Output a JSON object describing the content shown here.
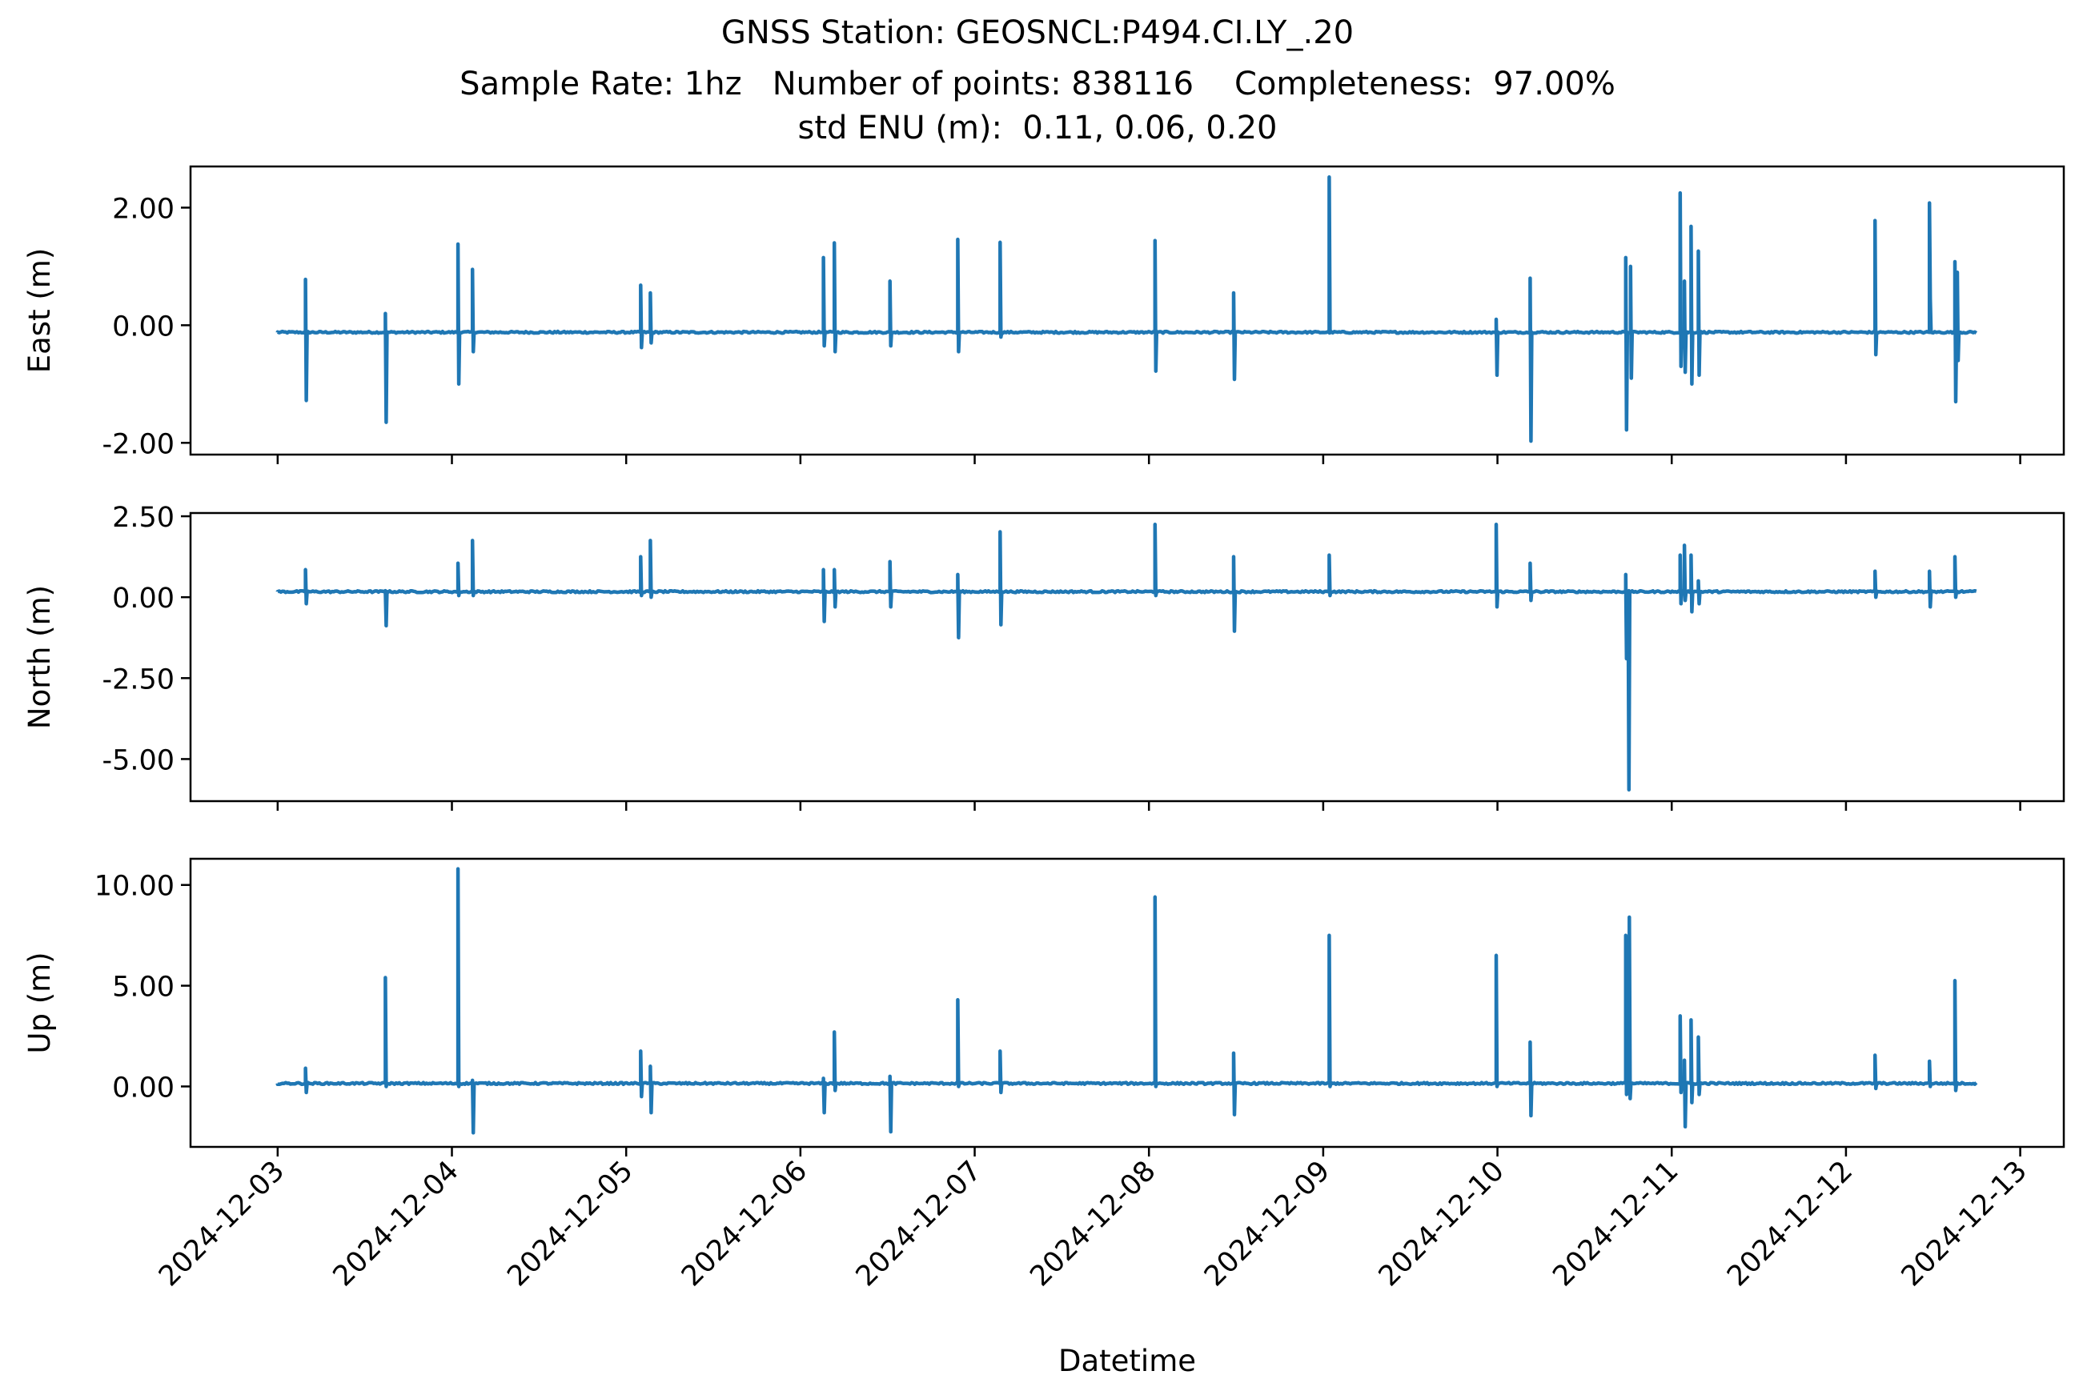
{
  "chart_title": {
    "line1": "GNSS Station: GEOSNCL:P494.CI.LY_.20",
    "line2": "Sample Rate: 1hz   Number of points: 838116    Completeness:  97.00%",
    "line3": "std ENU (m):  0.11, 0.06, 0.20"
  },
  "chart_data": {
    "type": "line",
    "xlabel": "Datetime",
    "x_ticks": [
      "2024-12-03",
      "2024-12-04",
      "2024-12-05",
      "2024-12-06",
      "2024-12-07",
      "2024-12-08",
      "2024-12-09",
      "2024-12-10",
      "2024-12-11",
      "2024-12-12",
      "2024-12-13"
    ],
    "xlim": [
      "2024-12-02T12:00",
      "2024-12-13T06:00"
    ],
    "series_color": "#1f77b4",
    "panels": [
      {
        "name": "east",
        "ylabel": "East (m)",
        "ylim": [
          -2.2,
          2.7
        ],
        "yticks": [
          2.0,
          0.0,
          -2.0
        ],
        "ytick_labels": [
          "2.00",
          "0.00",
          "-2.00"
        ],
        "baseline": -0.12,
        "spikes": [
          {
            "t": "2024-12-03T03:50",
            "hi": 0.78,
            "lo": -1.28
          },
          {
            "t": "2024-12-03T14:50",
            "hi": 0.2,
            "lo": -1.65
          },
          {
            "t": "2024-12-04T00:50",
            "hi": 1.38,
            "lo": -1.0
          },
          {
            "t": "2024-12-04T02:50",
            "hi": 0.95,
            "lo": -0.45
          },
          {
            "t": "2024-12-05T02:00",
            "hi": 0.68,
            "lo": -0.38
          },
          {
            "t": "2024-12-05T03:20",
            "hi": 0.55,
            "lo": -0.3
          },
          {
            "t": "2024-12-06T03:10",
            "hi": 1.15,
            "lo": -0.35
          },
          {
            "t": "2024-12-06T04:40",
            "hi": 1.4,
            "lo": -0.45
          },
          {
            "t": "2024-12-06T12:20",
            "hi": 0.75,
            "lo": -0.35
          },
          {
            "t": "2024-12-06T21:40",
            "hi": 1.46,
            "lo": -0.45
          },
          {
            "t": "2024-12-07T03:30",
            "hi": 1.41,
            "lo": -0.2
          },
          {
            "t": "2024-12-08T00:50",
            "hi": 1.44,
            "lo": -0.78
          },
          {
            "t": "2024-12-08T11:40",
            "hi": 0.55,
            "lo": -0.92
          },
          {
            "t": "2024-12-09T00:50",
            "hi": 2.52,
            "lo": -0.1
          },
          {
            "t": "2024-12-09T23:50",
            "hi": 0.1,
            "lo": -0.85
          },
          {
            "t": "2024-12-10T04:30",
            "hi": 0.8,
            "lo": -1.97
          },
          {
            "t": "2024-12-10T17:40",
            "hi": 1.15,
            "lo": -1.78
          },
          {
            "t": "2024-12-10T18:20",
            "hi": 1.0,
            "lo": -0.9
          },
          {
            "t": "2024-12-11T01:10",
            "hi": 2.25,
            "lo": -0.7
          },
          {
            "t": "2024-12-11T01:45",
            "hi": 0.75,
            "lo": -0.8
          },
          {
            "t": "2024-12-11T02:40",
            "hi": 1.68,
            "lo": -1.0
          },
          {
            "t": "2024-12-11T03:40",
            "hi": 1.26,
            "lo": -0.85
          },
          {
            "t": "2024-12-12T04:00",
            "hi": 1.78,
            "lo": -0.5
          },
          {
            "t": "2024-12-12T11:30",
            "hi": 2.08,
            "lo": 0.45
          },
          {
            "t": "2024-12-12T15:00",
            "hi": 1.08,
            "lo": -1.3
          },
          {
            "t": "2024-12-12T15:20",
            "hi": 0.9,
            "lo": -0.6
          }
        ]
      },
      {
        "name": "north",
        "ylabel": "North (m)",
        "ylim": [
          -6.3,
          2.6
        ],
        "yticks": [
          2.5,
          0.0,
          -2.5,
          -5.0
        ],
        "ytick_labels": [
          "2.50",
          "0.00",
          "-2.50",
          "-5.00"
        ],
        "baseline": 0.17,
        "spikes": [
          {
            "t": "2024-12-03T03:50",
            "hi": 0.85,
            "lo": -0.2
          },
          {
            "t": "2024-12-03T14:50",
            "hi": 0.2,
            "lo": -0.88
          },
          {
            "t": "2024-12-04T00:50",
            "hi": 1.05,
            "lo": 0.05
          },
          {
            "t": "2024-12-04T02:50",
            "hi": 1.75,
            "lo": 0.05
          },
          {
            "t": "2024-12-05T02:00",
            "hi": 1.25,
            "lo": 0.05
          },
          {
            "t": "2024-12-05T03:20",
            "hi": 1.75,
            "lo": 0.0
          },
          {
            "t": "2024-12-06T03:10",
            "hi": 0.85,
            "lo": -0.75
          },
          {
            "t": "2024-12-06T04:40",
            "hi": 0.85,
            "lo": -0.3
          },
          {
            "t": "2024-12-06T12:20",
            "hi": 1.1,
            "lo": -0.3
          },
          {
            "t": "2024-12-06T21:40",
            "hi": 0.7,
            "lo": -1.25
          },
          {
            "t": "2024-12-07T03:30",
            "hi": 2.02,
            "lo": -0.85
          },
          {
            "t": "2024-12-08T00:50",
            "hi": 2.25,
            "lo": 0.05
          },
          {
            "t": "2024-12-08T11:40",
            "hi": 1.25,
            "lo": -1.05
          },
          {
            "t": "2024-12-09T00:50",
            "hi": 1.3,
            "lo": 0.05
          },
          {
            "t": "2024-12-09T23:50",
            "hi": 2.25,
            "lo": -0.3
          },
          {
            "t": "2024-12-10T04:30",
            "hi": 1.05,
            "lo": -0.1
          },
          {
            "t": "2024-12-10T17:40",
            "hi": 0.7,
            "lo": -1.9
          },
          {
            "t": "2024-12-10T18:00",
            "hi": 0.1,
            "lo": -5.95
          },
          {
            "t": "2024-12-11T01:10",
            "hi": 1.3,
            "lo": -0.2
          },
          {
            "t": "2024-12-11T01:45",
            "hi": 1.6,
            "lo": -0.1
          },
          {
            "t": "2024-12-11T02:40",
            "hi": 1.3,
            "lo": -0.45
          },
          {
            "t": "2024-12-11T03:40",
            "hi": 0.5,
            "lo": -0.2
          },
          {
            "t": "2024-12-12T04:00",
            "hi": 0.8,
            "lo": 0.0
          },
          {
            "t": "2024-12-12T11:30",
            "hi": 0.8,
            "lo": -0.3
          },
          {
            "t": "2024-12-12T15:00",
            "hi": 1.25,
            "lo": 0.0
          }
        ]
      },
      {
        "name": "up",
        "ylabel": "Up (m)",
        "ylim": [
          -3.0,
          11.3
        ],
        "yticks": [
          10.0,
          5.0,
          0.0
        ],
        "ytick_labels": [
          "10.00",
          "5.00",
          "0.00"
        ],
        "baseline": 0.15,
        "spikes": [
          {
            "t": "2024-12-03T03:50",
            "hi": 0.9,
            "lo": -0.3
          },
          {
            "t": "2024-12-03T14:50",
            "hi": 5.4,
            "lo": 0.0
          },
          {
            "t": "2024-12-04T00:50",
            "hi": 10.8,
            "lo": 0.0
          },
          {
            "t": "2024-12-04T02:50",
            "hi": 0.3,
            "lo": -2.3
          },
          {
            "t": "2024-12-05T02:00",
            "hi": 1.75,
            "lo": -0.5
          },
          {
            "t": "2024-12-05T03:20",
            "hi": 1.0,
            "lo": -1.3
          },
          {
            "t": "2024-12-06T03:10",
            "hi": 0.4,
            "lo": -1.3
          },
          {
            "t": "2024-12-06T04:40",
            "hi": 2.7,
            "lo": -0.2
          },
          {
            "t": "2024-12-06T12:20",
            "hi": 0.5,
            "lo": -2.25
          },
          {
            "t": "2024-12-06T21:40",
            "hi": 4.3,
            "lo": 0.0
          },
          {
            "t": "2024-12-07T03:30",
            "hi": 1.75,
            "lo": -0.3
          },
          {
            "t": "2024-12-08T00:50",
            "hi": 9.4,
            "lo": 0.0
          },
          {
            "t": "2024-12-08T11:40",
            "hi": 1.65,
            "lo": -1.4
          },
          {
            "t": "2024-12-09T00:50",
            "hi": 7.5,
            "lo": 0.0
          },
          {
            "t": "2024-12-09T23:50",
            "hi": 6.5,
            "lo": 0.0
          },
          {
            "t": "2024-12-10T04:30",
            "hi": 2.2,
            "lo": -1.45
          },
          {
            "t": "2024-12-10T17:40",
            "hi": 7.5,
            "lo": -0.4
          },
          {
            "t": "2024-12-10T18:10",
            "hi": 8.4,
            "lo": -0.6
          },
          {
            "t": "2024-12-11T01:10",
            "hi": 3.5,
            "lo": -0.3
          },
          {
            "t": "2024-12-11T01:45",
            "hi": 1.3,
            "lo": -2.0
          },
          {
            "t": "2024-12-11T02:40",
            "hi": 3.3,
            "lo": -0.8
          },
          {
            "t": "2024-12-11T03:40",
            "hi": 2.45,
            "lo": -0.4
          },
          {
            "t": "2024-12-12T04:00",
            "hi": 1.55,
            "lo": -0.1
          },
          {
            "t": "2024-12-12T11:30",
            "hi": 1.25,
            "lo": 0.0
          },
          {
            "t": "2024-12-12T15:00",
            "hi": 5.25,
            "lo": -0.2
          }
        ]
      }
    ],
    "data_range": [
      "2024-12-03T00:00",
      "2024-12-12T18:00"
    ]
  }
}
